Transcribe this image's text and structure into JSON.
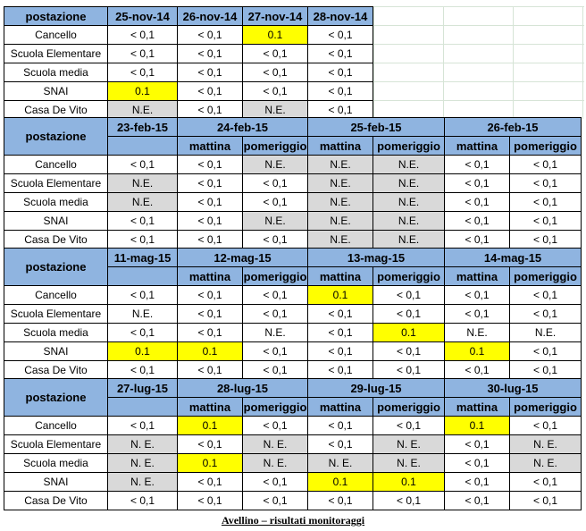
{
  "caption": "Avellino – risultati monitoraggi",
  "block1": {
    "header": "postazione",
    "dates": [
      "25-nov-14",
      "26-nov-14",
      "27-nov-14",
      "28-nov-14"
    ],
    "rows": [
      {
        "label": "Cancello",
        "values": [
          "< 0,1",
          "< 0,1",
          "0.1",
          "< 0,1"
        ],
        "styles": [
          "",
          "",
          "yl",
          ""
        ]
      },
      {
        "label": "Scuola Elementare",
        "values": [
          "< 0,1",
          "< 0,1",
          "< 0,1",
          "< 0,1"
        ],
        "styles": [
          "",
          "",
          "",
          ""
        ]
      },
      {
        "label": "Scuola media",
        "values": [
          "< 0,1",
          "< 0,1",
          "< 0,1",
          "< 0,1"
        ],
        "styles": [
          "",
          "",
          "",
          ""
        ]
      },
      {
        "label": "SNAI",
        "values": [
          "0.1",
          "< 0,1",
          "< 0,1",
          "< 0,1"
        ],
        "styles": [
          "yl",
          "",
          "",
          ""
        ]
      },
      {
        "label": "Casa De Vito",
        "values": [
          "N.E.",
          "< 0,1",
          "N.E.",
          "< 0,1"
        ],
        "styles": [
          "ne",
          "",
          "ne",
          ""
        ]
      }
    ]
  },
  "blocks": [
    {
      "header": "postazione",
      "dates": [
        "23-feb-15",
        "24-feb-15",
        "25-feb-15",
        "26-feb-15"
      ],
      "sub_labels": [
        "",
        "mattina",
        "pomeriggio",
        "mattina",
        "pomeriggio",
        "mattina",
        "pomeriggio"
      ],
      "rows": [
        {
          "label": "Cancello",
          "values": [
            "< 0,1",
            "< 0,1",
            "N.E.",
            "N.E.",
            "N.E.",
            "< 0,1",
            "< 0,1"
          ],
          "styles": [
            "",
            "",
            "ne",
            "ne",
            "ne",
            "",
            ""
          ]
        },
        {
          "label": "Scuola Elementare",
          "values": [
            "N.E.",
            "< 0,1",
            "< 0,1",
            "N.E.",
            "N.E.",
            "< 0,1",
            "< 0,1"
          ],
          "styles": [
            "ne",
            "",
            "",
            "ne",
            "ne",
            "",
            ""
          ]
        },
        {
          "label": "Scuola media",
          "values": [
            "N.E.",
            "< 0,1",
            "< 0,1",
            "N.E.",
            "N.E.",
            "< 0,1",
            "< 0,1"
          ],
          "styles": [
            "ne",
            "",
            "",
            "ne",
            "ne",
            "",
            ""
          ]
        },
        {
          "label": "SNAI",
          "values": [
            "< 0,1",
            "< 0,1",
            "N.E.",
            "N.E.",
            "N.E.",
            "< 0,1",
            "< 0,1"
          ],
          "styles": [
            "",
            "",
            "ne",
            "ne",
            "ne",
            "",
            ""
          ]
        },
        {
          "label": "Casa De Vito",
          "values": [
            "< 0,1",
            "< 0,1",
            "< 0,1",
            "N.E.",
            "N.E.",
            "< 0,1",
            "< 0,1"
          ],
          "styles": [
            "",
            "",
            "",
            "ne",
            "ne",
            "",
            ""
          ]
        }
      ]
    },
    {
      "header": "postazione",
      "dates": [
        "11-mag-15",
        "12-mag-15",
        "13-mag-15",
        "14-mag-15"
      ],
      "sub_labels": [
        "",
        "mattina",
        "pomeriggio",
        "mattina",
        "pomeriggio",
        "mattina",
        "pomeriggio"
      ],
      "rows": [
        {
          "label": "Cancello",
          "values": [
            "< 0,1",
            "< 0,1",
            "< 0,1",
            "0.1",
            "< 0,1",
            "< 0,1",
            "< 0,1"
          ],
          "styles": [
            "",
            "",
            "",
            "yl",
            "",
            "",
            ""
          ]
        },
        {
          "label": "Scuola Elementare",
          "values": [
            "N.E.",
            "< 0,1",
            "< 0,1",
            "< 0,1",
            "< 0,1",
            "< 0,1",
            "< 0,1"
          ],
          "styles": [
            "",
            "",
            "",
            "",
            "",
            "",
            ""
          ]
        },
        {
          "label": "Scuola media",
          "values": [
            "< 0,1",
            "< 0,1",
            "N.E.",
            "< 0,1",
            "0.1",
            "N.E.",
            "N.E."
          ],
          "styles": [
            "",
            "",
            "",
            "",
            "yl",
            "",
            ""
          ]
        },
        {
          "label": "SNAI",
          "values": [
            "0.1",
            "0.1",
            "< 0,1",
            "< 0,1",
            "< 0,1",
            "0.1",
            "< 0,1"
          ],
          "styles": [
            "yl",
            "yl",
            "",
            "",
            "",
            "yl",
            ""
          ]
        },
        {
          "label": "Casa De Vito",
          "values": [
            "< 0,1",
            "< 0,1",
            "< 0,1",
            "< 0,1",
            "< 0,1",
            "< 0,1",
            "< 0,1"
          ],
          "styles": [
            "",
            "",
            "",
            "",
            "",
            "",
            ""
          ]
        }
      ]
    },
    {
      "header": "postazione",
      "dates": [
        "27-lug-15",
        "28-lug-15",
        "29-lug-15",
        "30-lug-15"
      ],
      "sub_labels": [
        "",
        "mattina",
        "pomeriggio",
        "mattina",
        "pomeriggio",
        "mattina",
        "pomeriggio"
      ],
      "rows": [
        {
          "label": "Cancello",
          "values": [
            "< 0,1",
            "0.1",
            "< 0,1",
            "< 0,1",
            "< 0,1",
            "0.1",
            "< 0,1"
          ],
          "styles": [
            "",
            "yl",
            "",
            "",
            "",
            "yl",
            ""
          ]
        },
        {
          "label": "Scuola Elementare",
          "values": [
            "N. E.",
            "< 0,1",
            "N. E.",
            "< 0,1",
            "N. E.",
            "< 0,1",
            "N. E."
          ],
          "styles": [
            "ne",
            "",
            "ne",
            "",
            "ne",
            "",
            "ne"
          ]
        },
        {
          "label": "Scuola media",
          "values": [
            "N. E.",
            "0.1",
            "N. E.",
            "N. E.",
            "N. E.",
            "< 0,1",
            "N. E."
          ],
          "styles": [
            "ne",
            "yl",
            "ne",
            "ne",
            "ne",
            "",
            "ne"
          ]
        },
        {
          "label": "SNAI",
          "values": [
            "N. E.",
            "< 0,1",
            "< 0,1",
            "0.1",
            "0.1",
            "< 0,1",
            "< 0,1"
          ],
          "styles": [
            "ne",
            "",
            "",
            "yl",
            "yl",
            "",
            ""
          ]
        },
        {
          "label": "Casa De Vito",
          "values": [
            "< 0,1",
            "< 0,1",
            "< 0,1",
            "< 0,1",
            "< 0,1",
            "< 0,1",
            "< 0,1"
          ],
          "styles": [
            "",
            "",
            "",
            "",
            "",
            "",
            ""
          ]
        }
      ]
    }
  ]
}
